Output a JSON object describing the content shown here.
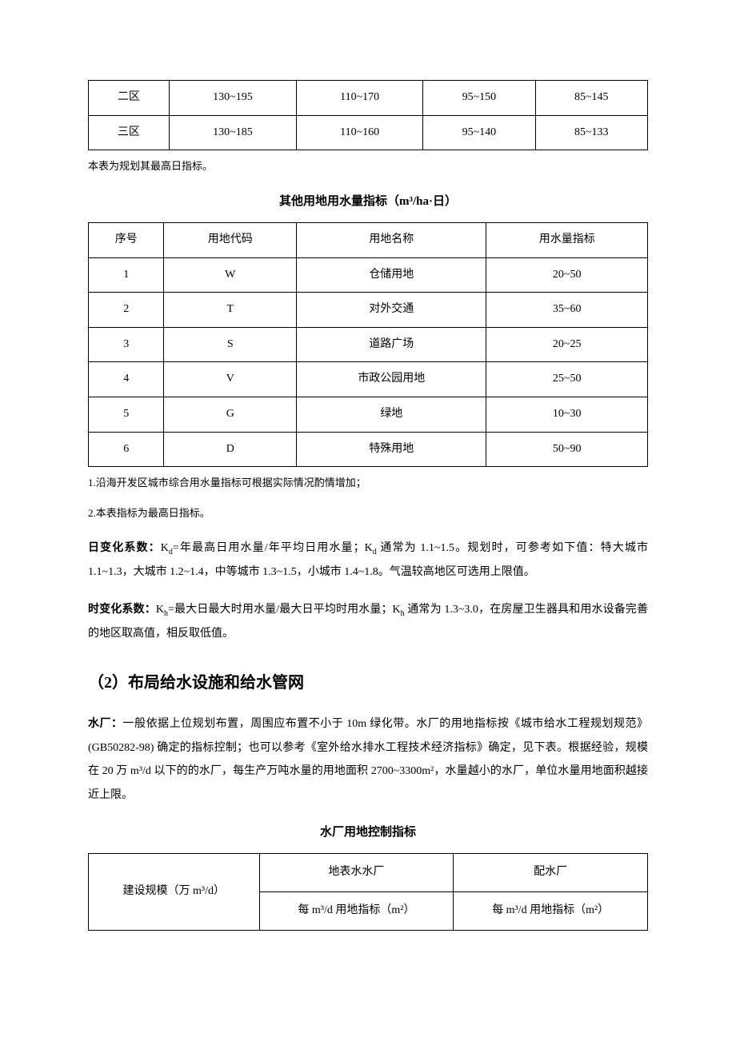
{
  "table1": {
    "rows": [
      [
        "二区",
        "130~195",
        "110~170",
        "95~150",
        "85~145"
      ],
      [
        "三区",
        "130~185",
        "110~160",
        "95~140",
        "85~133"
      ]
    ],
    "note": "本表为规划其最高日指标。"
  },
  "table2": {
    "title": "其他用地用水量指标（m³/ha·日）",
    "headers": [
      "序号",
      "用地代码",
      "用地名称",
      "用水量指标"
    ],
    "rows": [
      [
        "1",
        "W",
        "仓储用地",
        "20~50"
      ],
      [
        "2",
        "T",
        "对外交通",
        "35~60"
      ],
      [
        "3",
        "S",
        "道路广场",
        "20~25"
      ],
      [
        "4",
        "V",
        "市政公园用地",
        "25~50"
      ],
      [
        "5",
        "G",
        "绿地",
        "10~30"
      ],
      [
        "6",
        "D",
        "特殊用地",
        "50~90"
      ]
    ],
    "note1": "1.沿海开发区城市综合用水量指标可根据实际情况酌情增加；",
    "note2": "2.本表指标为最高日指标。"
  },
  "para1": {
    "label": "日变化系数：",
    "text": "Kd=年最高日用水量/年平均日用水量；Kd 通常为 1.1~1.5。规划时，可参考如下值：特大城市 1.1~1.3，大城市 1.2~1.4，中等城市 1.3~1.5，小城市 1.4~1.8。气温较高地区可选用上限值。"
  },
  "para2": {
    "label": "时变化系数：",
    "text": "Kh=最大日最大时用水量/最大日平均时用水量；Kh 通常为 1.3~3.0，在房屋卫生器具和用水设备完善的地区取高值，相反取低值。"
  },
  "section_title": "（2）布局给水设施和给水管网",
  "para3": {
    "label": "水厂：",
    "text": "一般依据上位规划布置，周围应布置不小于 10m 绿化带。水厂的用地指标按《城市给水工程规划规范》(GB50282-98) 确定的指标控制；也可以参考《室外给水排水工程技术经济指标》确定，见下表。根据经验，规模在 20 万 m³/d 以下的的水厂，每生产万吨水量的用地面积 2700~3300m²，水量越小的水厂，单位水量用地面积越接近上限。"
  },
  "table3": {
    "title": "水厂用地控制指标",
    "h_scale": "建设规模（万 m³/d）",
    "h_surface": "地表水水厂",
    "h_dist": "配水厂",
    "h_sub": "每 m³/d 用地指标（m²）"
  }
}
